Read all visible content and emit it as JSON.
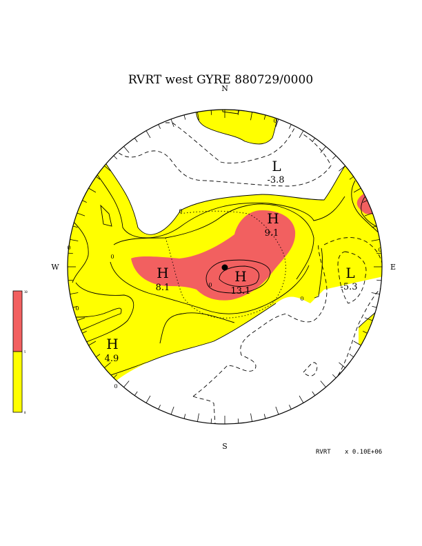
{
  "title": "RVRT west GYRE 880729/0000",
  "compass": {
    "north": "N",
    "south": "S",
    "east": "E",
    "west": "W"
  },
  "centers": [
    {
      "type": "H",
      "value": "9.1"
    },
    {
      "type": "H",
      "value": "8.1"
    },
    {
      "type": "H",
      "value": "13.1"
    },
    {
      "type": "H",
      "value": "4.9"
    },
    {
      "type": "L",
      "value": "-3.8"
    },
    {
      "type": "L",
      "value": "-5.3"
    }
  ],
  "contour_labels": [
    "0",
    "0",
    "0",
    "0",
    "0",
    "0",
    "0",
    "0",
    "0"
  ],
  "footer": {
    "field": "RVRT",
    "scale": "x  0.10E+06"
  },
  "legend": {
    "colors": {
      "high": "#f26060",
      "mid": "#ffff00",
      "low": "#ffffff"
    },
    "tick_labels": [
      "10",
      "5",
      "0"
    ]
  }
}
